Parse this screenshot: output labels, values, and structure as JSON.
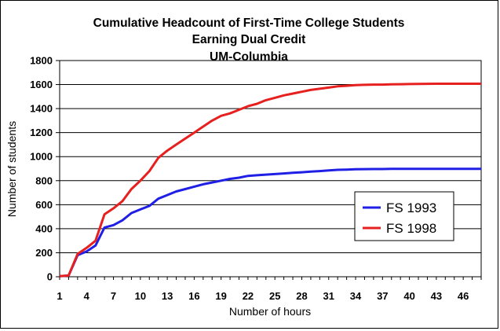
{
  "chart_data": {
    "type": "line",
    "title_lines": [
      "Cumulative Headcount of First-Time College Students",
      "Earning Dual Credit",
      "UM-Columbia"
    ],
    "xlabel": "Number of hours",
    "ylabel": "Number of students",
    "xlim": [
      1,
      48
    ],
    "ylim": [
      0,
      1800
    ],
    "x_ticks": [
      1,
      4,
      7,
      10,
      13,
      16,
      19,
      22,
      25,
      28,
      31,
      34,
      37,
      40,
      43,
      46
    ],
    "y_ticks": [
      0,
      200,
      400,
      600,
      800,
      1000,
      1200,
      1400,
      1600,
      1800
    ],
    "grid": "horizontal",
    "legend_position": "bottom-right",
    "x": [
      1,
      2,
      3,
      4,
      5,
      6,
      7,
      8,
      9,
      10,
      11,
      12,
      13,
      14,
      15,
      16,
      17,
      18,
      19,
      20,
      21,
      22,
      23,
      24,
      25,
      26,
      27,
      28,
      29,
      30,
      31,
      32,
      33,
      34,
      35,
      36,
      37,
      38,
      39,
      40,
      41,
      42,
      43,
      44,
      45,
      46,
      47,
      48
    ],
    "series": [
      {
        "name": "FS 1993",
        "color": "#1f1fe6",
        "values": [
          5,
          10,
          180,
          210,
          260,
          410,
          430,
          470,
          530,
          560,
          590,
          650,
          680,
          710,
          730,
          750,
          770,
          785,
          800,
          815,
          825,
          840,
          845,
          850,
          855,
          860,
          865,
          870,
          875,
          880,
          885,
          890,
          892,
          895,
          896,
          897,
          897,
          898,
          898,
          898,
          898,
          898,
          898,
          898,
          898,
          898,
          898,
          898
        ]
      },
      {
        "name": "FS 1998",
        "color": "#e6201f",
        "values": [
          5,
          10,
          190,
          240,
          300,
          520,
          570,
          630,
          730,
          800,
          880,
          990,
          1050,
          1100,
          1150,
          1200,
          1250,
          1300,
          1340,
          1360,
          1390,
          1420,
          1440,
          1470,
          1490,
          1510,
          1525,
          1540,
          1555,
          1565,
          1575,
          1585,
          1590,
          1595,
          1598,
          1600,
          1600,
          1602,
          1603,
          1604,
          1605,
          1606,
          1607,
          1607,
          1607,
          1607,
          1607,
          1607
        ]
      }
    ]
  }
}
